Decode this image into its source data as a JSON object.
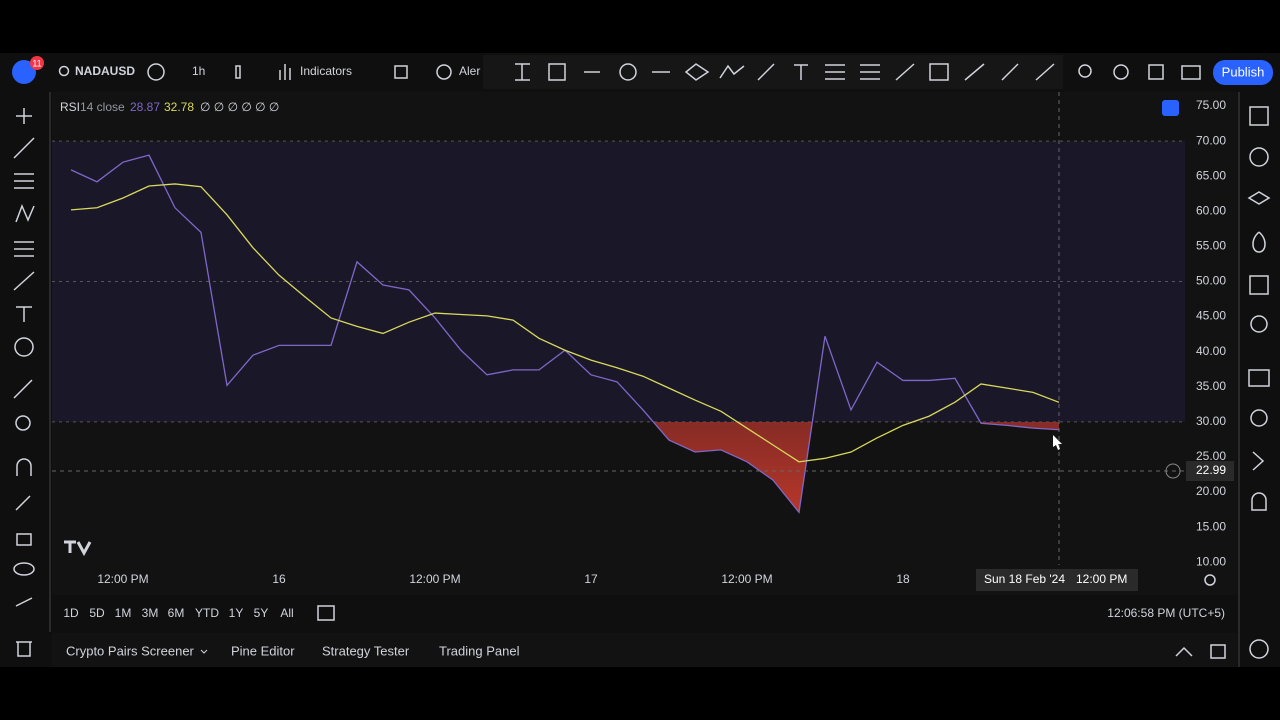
{
  "toolbar": {
    "badge": "11",
    "symbol": "NADAUSD",
    "interval": "1h",
    "indicators": "Indicators",
    "alert": "Aler",
    "publish": "Publish"
  },
  "chart_data": {
    "type": "line",
    "title": "RSI",
    "subtitle": "14 close",
    "legend_values": [
      "28.87",
      "32.78"
    ],
    "legend_extras": "∅ ∅ ∅ ∅ ∅ ∅",
    "categories": [
      null,
      null,
      "12:00 PM",
      null,
      null,
      null,
      null,
      null,
      "16",
      null,
      null,
      null,
      null,
      null,
      "12:00 PM",
      null,
      null,
      null,
      null,
      null,
      "17",
      null,
      null,
      null,
      null,
      null,
      "12:00 PM",
      null,
      null,
      null,
      null,
      null,
      "18",
      null,
      null,
      null,
      null,
      null,
      null
    ],
    "series": [
      {
        "color": "#7e67c8",
        "values": [
          65.9,
          64.2,
          67.0,
          68.0,
          60.5,
          57.0,
          35.2,
          39.5,
          40.9,
          40.9,
          40.9,
          52.8,
          49.5,
          48.8,
          44.8,
          40.2,
          36.7,
          37.4,
          37.4,
          40.2,
          36.7,
          35.7,
          31.7,
          27.4,
          25.7,
          26.0,
          24.3,
          21.7,
          17.1,
          42.2,
          31.7,
          38.5,
          35.9,
          35.9,
          36.2,
          29.8,
          29.5,
          29.1,
          28.87
        ]
      },
      {
        "color": "#d9d95c",
        "values": [
          60.2,
          60.5,
          61.9,
          63.6,
          63.9,
          63.5,
          59.5,
          54.8,
          50.9,
          47.8,
          44.8,
          43.6,
          42.6,
          44.2,
          45.5,
          45.3,
          45.1,
          44.5,
          41.9,
          40.2,
          38.8,
          37.7,
          36.5,
          34.8,
          33.1,
          31.5,
          29.1,
          26.7,
          24.3,
          24.8,
          25.7,
          27.7,
          29.5,
          30.8,
          32.8,
          35.4,
          34.8,
          34.2,
          32.78
        ]
      }
    ],
    "ylim": [
      9.6,
      77
    ],
    "yticks": [
      {
        "value": 10,
        "label": "10.00"
      },
      {
        "value": 15,
        "label": "15.00"
      },
      {
        "value": 20,
        "label": "20.00"
      },
      {
        "value": 25,
        "label": "25.00"
      },
      {
        "value": 30,
        "label": "30.00"
      },
      {
        "value": 35,
        "label": "35.00"
      },
      {
        "value": 40,
        "label": "40.00"
      },
      {
        "value": 45,
        "label": "45.00"
      },
      {
        "value": 50,
        "label": "50.00"
      },
      {
        "value": 55,
        "label": "55.00"
      },
      {
        "value": 60,
        "label": "60.00"
      },
      {
        "value": 65,
        "label": "65.00"
      },
      {
        "value": 70,
        "label": "70.00"
      },
      {
        "value": 75,
        "label": "75.00"
      }
    ],
    "bands": [
      70,
      50,
      30
    ],
    "crosshair": {
      "value": 22.99,
      "label": "22.99",
      "date": "Sun 18 Feb '24",
      "time": "12:00 PM"
    }
  },
  "bottom": {
    "ranges": [
      "1D",
      "5D",
      "1M",
      "3M",
      "6M",
      "YTD",
      "1Y",
      "5Y",
      "All"
    ],
    "clock": "12:06:58 PM (UTC+5)",
    "tabs": [
      "Crypto Pairs Screener",
      "Pine Editor",
      "Strategy Tester",
      "Trading Panel"
    ]
  }
}
